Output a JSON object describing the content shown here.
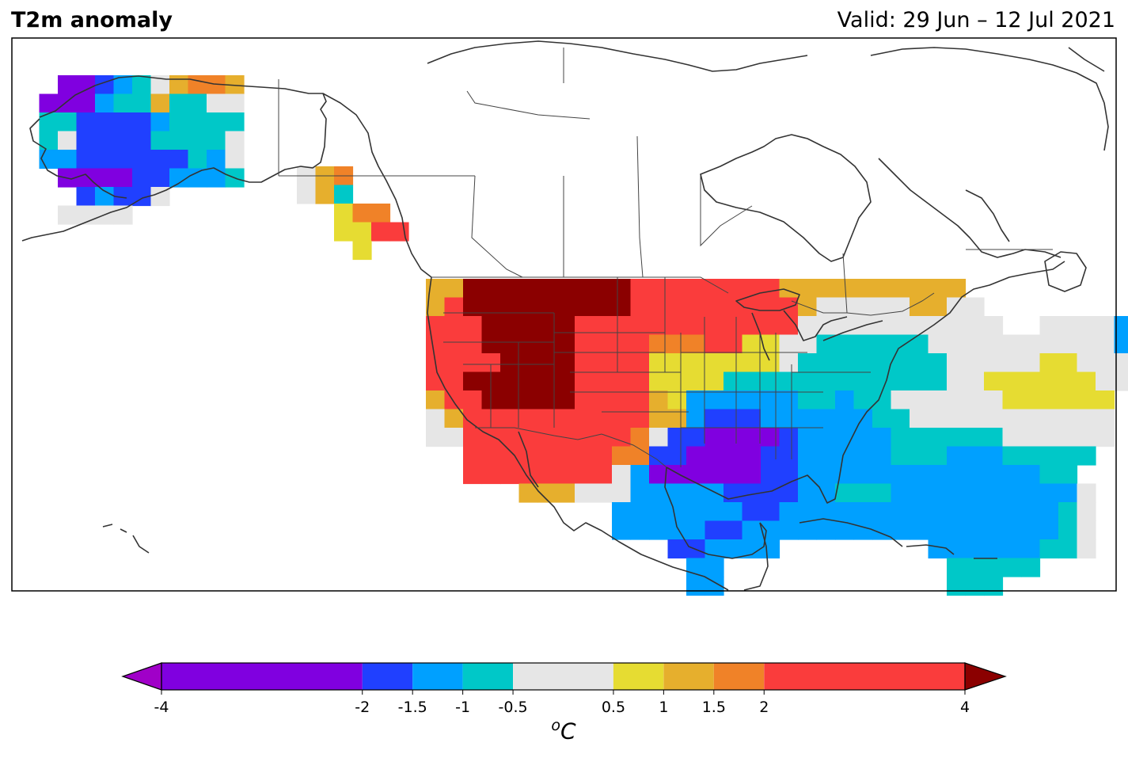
{
  "title": "T2m anomaly",
  "valid_label": "Valid: 29 Jun – 12 Jul 2021",
  "colorbar": {
    "unit_base": "C",
    "unit_sup": "o",
    "ticks": [
      "-4",
      "-2",
      "-1.5",
      "-1",
      "-0.5",
      "0.5",
      "1",
      "1.5",
      "2",
      "4"
    ],
    "bins": [
      {
        "from": -4,
        "to": -2,
        "color": "#8000e0"
      },
      {
        "from": -2,
        "to": -1.5,
        "color": "#2040ff"
      },
      {
        "from": -1.5,
        "to": -1,
        "color": "#00a0ff"
      },
      {
        "from": -1,
        "to": -0.5,
        "color": "#00c8c8"
      },
      {
        "from": -0.5,
        "to": 0.5,
        "color": "#e6e6e6"
      },
      {
        "from": 0.5,
        "to": 1,
        "color": "#e6dc32"
      },
      {
        "from": 1,
        "to": 1.5,
        "color": "#e6af2d"
      },
      {
        "from": 1.5,
        "to": 2,
        "color": "#f08228"
      },
      {
        "from": 2,
        "to": 4,
        "color": "#fa3c3c"
      }
    ],
    "under_color": "#a000c8",
    "over_color": "#8b0000"
  },
  "legend_colors": {
    "P": "#8000e0",
    "B": "#2040ff",
    "L": "#00a0ff",
    "C": "#00c8c8",
    "G": "#e6e6e6",
    "Y": "#e6dc32",
    "A": "#e6af2d",
    "O": "#f08228",
    "R": "#fa3c3c",
    "D": "#8b0000"
  },
  "anomaly_grid": {
    "alaska": [
      "..PPBLCGAOOA",
      ".PPPLCCACCGG",
      ".CCBBBBLCCCC",
      ".CGBBBBCCCCG",
      ".LLBBBBBBCLG",
      "..PPPPBBLLLC",
      "...BLBBG....",
      "..GGGG......"
    ],
    "bc_coast": [
      "GAO...",
      "GAC...",
      "..YOO.",
      "..YYRR",
      "...Y.."
    ],
    "conus": [
      "........................................................",
      "........................................................",
      "........................................................",
      ".......................................................",
      "AADDDDDDDDDRRRRRRRRAAAAAAAAAA..........................",
      "ARDDDDDDDDDRRRRRRRRRAGGGGGAAGG.........................",
      "RRRDDDDDRRRRRRRRRRRRGGGGGGGGGGG..GGGGLLLL..............",
      "RRRDDDDDRRRROOORRYYGGCCCCCCGGGGGGGGGGLLLL..............",
      "RRRRDDDDRRRRYYYYYYYGCCCCCCCCGGGGGYYGGGGG...............",
      "RRDDDDDDRRRRYYYYCCCCCCCCCCCCGGYYYYYYGGG................",
      "ARRDDDDDRRRRAYLLLLLLCCLCCGGGGGGYYYYYY..................",
      "GARRRRRRRRRRAALBBBLLLLLLCCGGGGGGGGGGG..................",
      "GGRRRRRRRRROGBBPPPPBLLLLLCCCCCCGGGGGG..................",
      "..RRRRRRRROOBBPPPPBBLLLLLCCCLLLCCCCC...................",
      "..RRRRRRRRGLPPPPPPBBLLLLLLLLLLLLLCC....................",
      ".....AAAGGGLLLLLBBBBLLCCCLLLLLLLLLLG...................",
      "..........LLLLLLLBBLLLLLLLLLLLLLLLCG...................",
      "..........LLLLLBBLLLLLLLLLLLLLLLLLCG...................",
      ".............BBLLLL........LLLLLLCCG...................",
      "..............LL............CCCCC......................",
      "..............LL............CCC........................"
    ]
  }
}
